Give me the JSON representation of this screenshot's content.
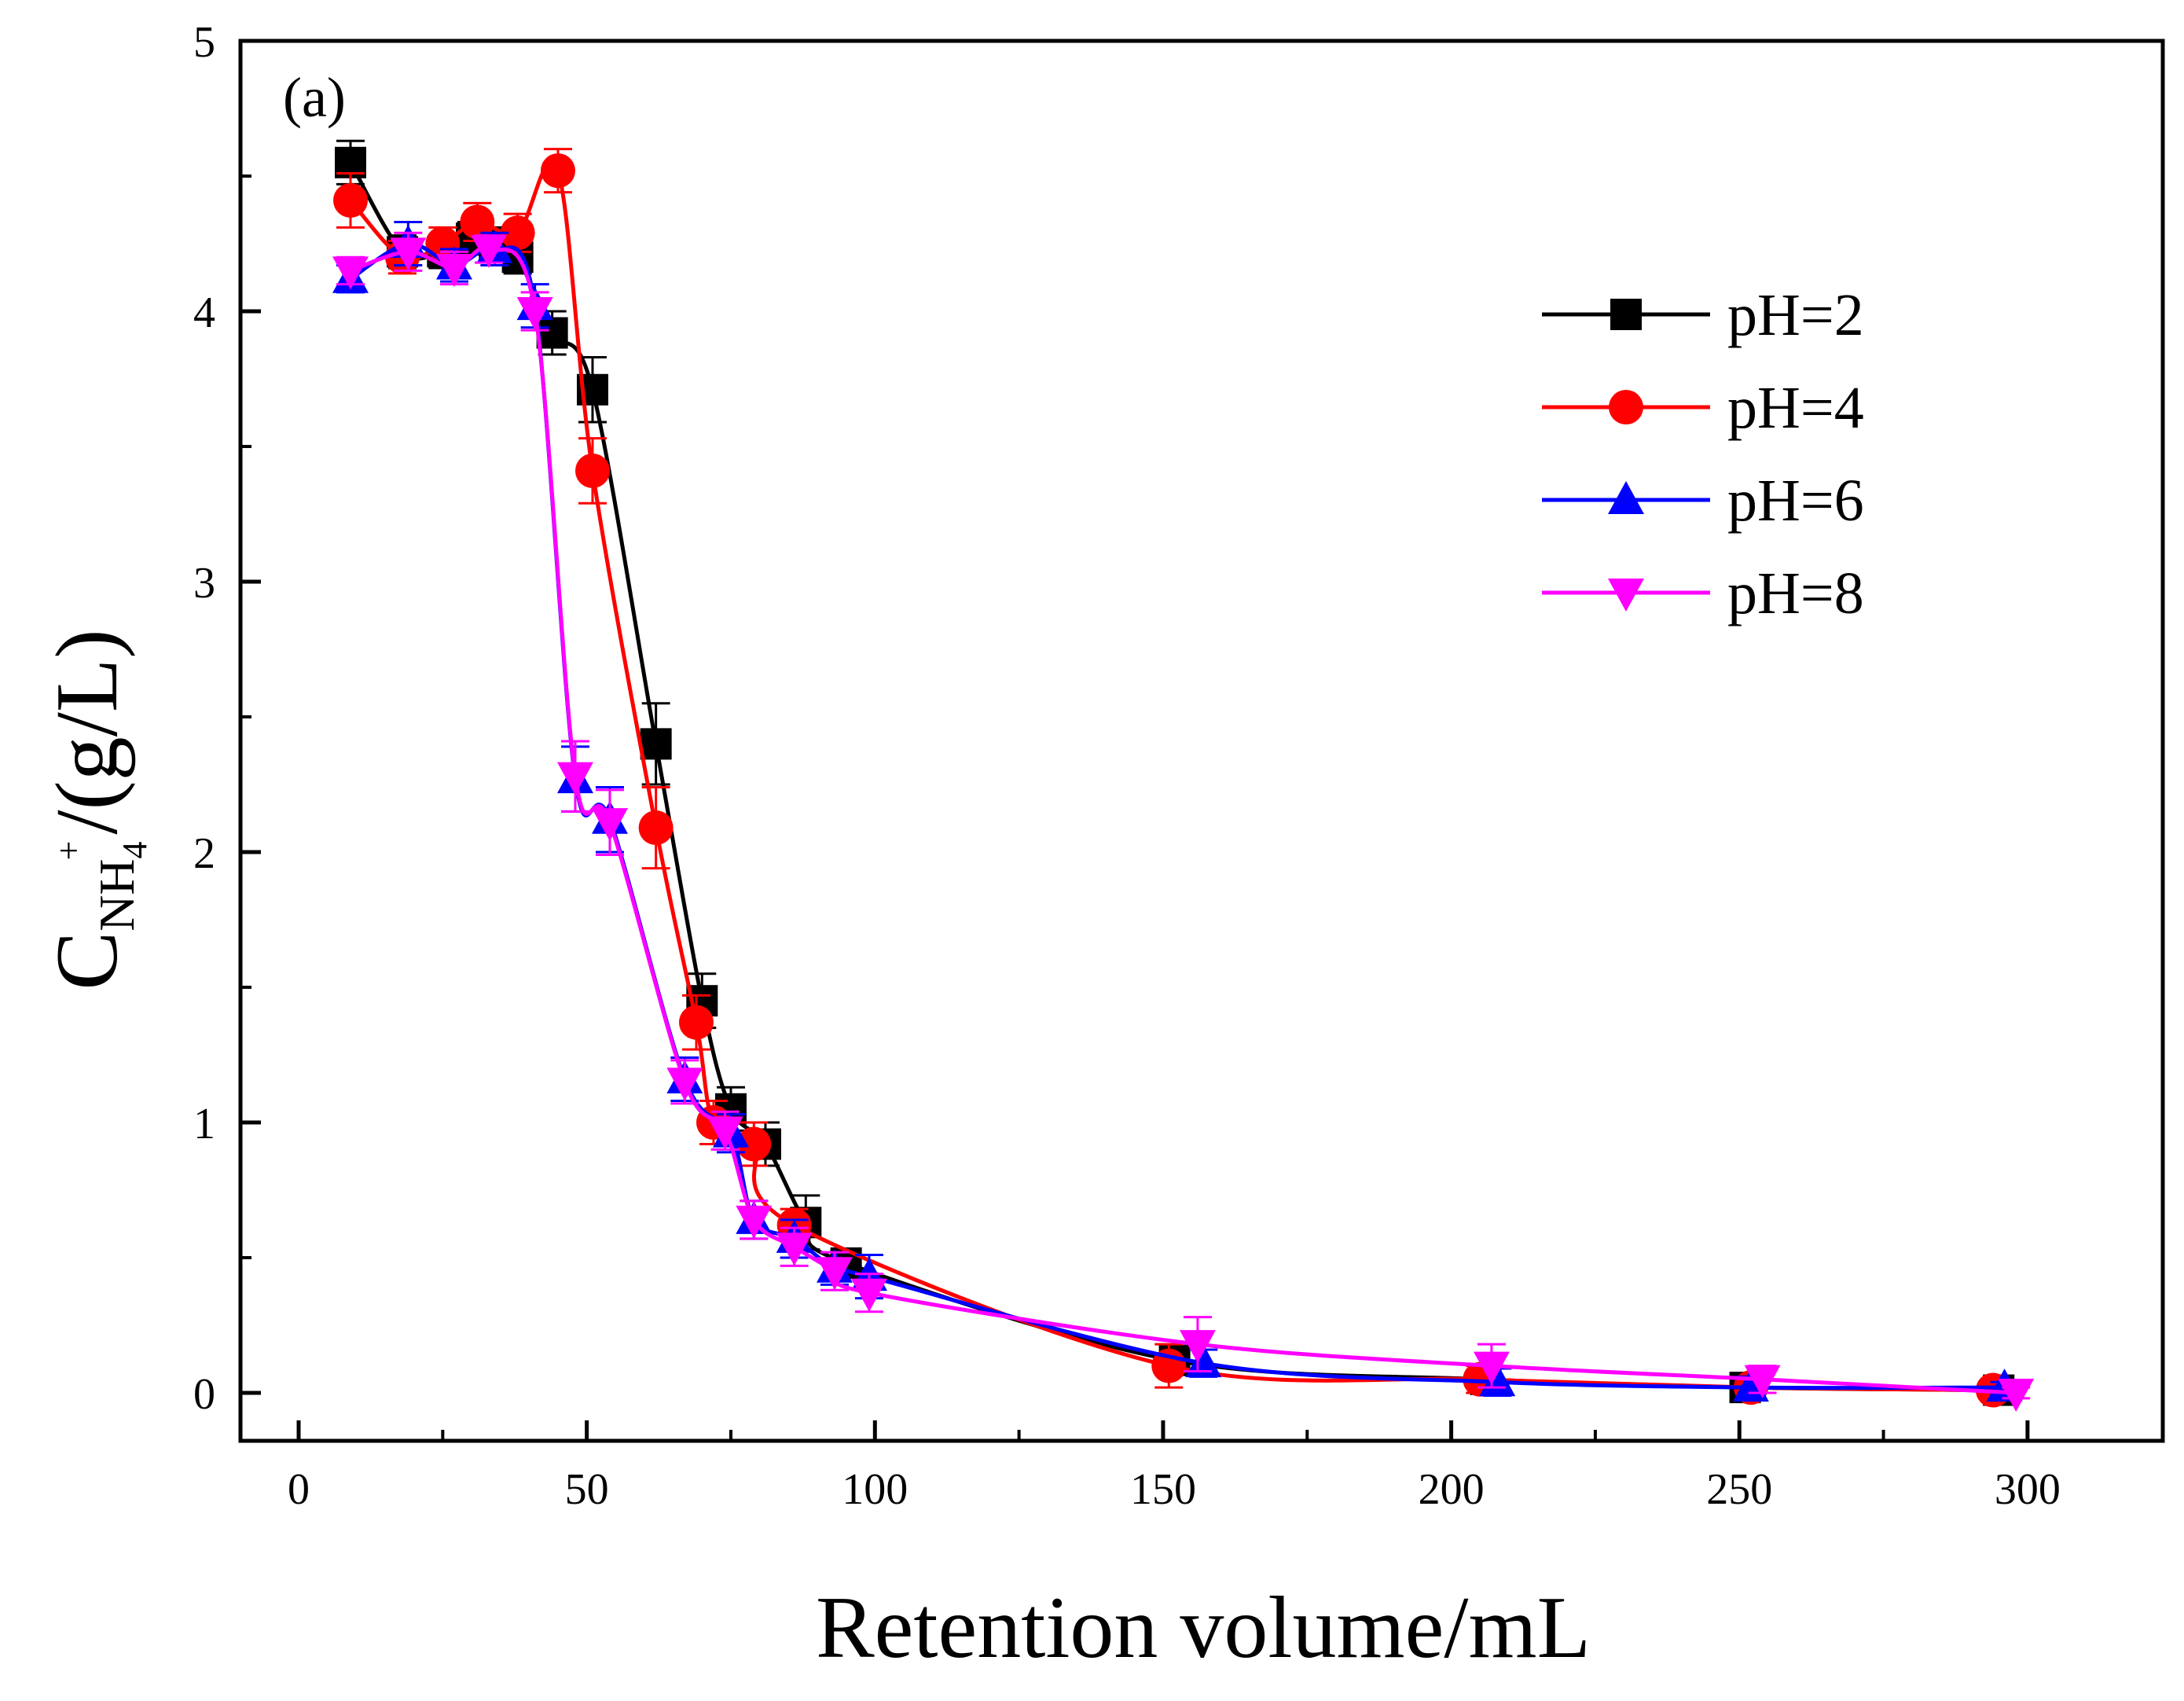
{
  "chart_data": {
    "type": "line",
    "panel_label": "(a)",
    "xlabel": "Retention volume/mL",
    "ylabel": {
      "symbol": "C",
      "subscript": "NH",
      "sub_sub": "4",
      "sup": "+",
      "unit": "/(g/L)"
    },
    "xlim": [
      -10,
      325
    ],
    "ylim": [
      -0.2,
      5
    ],
    "xticks": [
      0,
      50,
      100,
      150,
      200,
      250,
      300
    ],
    "yticks": [
      0,
      1,
      2,
      3,
      4,
      5
    ],
    "legend_position": "top-right",
    "series": [
      {
        "name": "pH=2",
        "color": "#000000",
        "marker": "square",
        "x": [
          9,
          18,
          25,
          30,
          34,
          38,
          44,
          51,
          62,
          70,
          75,
          81,
          88,
          95,
          152,
          206,
          251,
          295
        ],
        "y": [
          4.55,
          4.22,
          4.22,
          4.27,
          4.25,
          4.2,
          3.92,
          3.71,
          2.4,
          1.45,
          1.05,
          0.92,
          0.63,
          0.48,
          0.12,
          0.05,
          0.02,
          0.01
        ],
        "err": [
          0.08,
          0.06,
          0.06,
          0.06,
          0.06,
          0.06,
          0.08,
          0.12,
          0.15,
          0.1,
          0.08,
          0.08,
          0.1,
          0.05,
          0.05,
          0.04,
          0.03,
          0.02
        ]
      },
      {
        "name": "pH=4",
        "color": "#ff0000",
        "marker": "circle",
        "x": [
          9,
          18,
          25,
          31,
          38,
          45,
          51,
          62,
          69,
          72,
          79,
          86,
          151,
          205,
          252,
          294
        ],
        "y": [
          4.41,
          4.2,
          4.25,
          4.33,
          4.29,
          4.52,
          3.41,
          2.09,
          1.37,
          1.0,
          0.92,
          0.62,
          0.1,
          0.05,
          0.02,
          0.01
        ],
        "err": [
          0.1,
          0.06,
          0.06,
          0.07,
          0.07,
          0.08,
          0.12,
          0.15,
          0.1,
          0.08,
          0.08,
          0.06,
          0.08,
          0.05,
          0.04,
          0.02
        ]
      },
      {
        "name": "pH=6",
        "color": "#0000ff",
        "marker": "triangle-up",
        "x": [
          9,
          19,
          27,
          34,
          41,
          48,
          54,
          67,
          75,
          79,
          86,
          93,
          99,
          157,
          208,
          252,
          296
        ],
        "y": [
          4.12,
          4.25,
          4.17,
          4.23,
          4.02,
          2.27,
          2.12,
          1.16,
          0.96,
          0.64,
          0.57,
          0.46,
          0.43,
          0.11,
          0.04,
          0.02,
          0.02
        ],
        "err": [
          0.05,
          0.08,
          0.06,
          0.06,
          0.08,
          0.12,
          0.12,
          0.08,
          0.07,
          0.07,
          0.07,
          0.06,
          0.08,
          0.05,
          0.05,
          0.04,
          0.02
        ]
      },
      {
        "name": "pH=8",
        "color": "#ff00ff",
        "marker": "triangle-down",
        "x": [
          9,
          19,
          27,
          33,
          41,
          48,
          54,
          67,
          74,
          79,
          86,
          93,
          99,
          156,
          207,
          254,
          298
        ],
        "y": [
          4.15,
          4.22,
          4.16,
          4.23,
          4.0,
          2.28,
          2.11,
          1.15,
          0.97,
          0.64,
          0.54,
          0.45,
          0.37,
          0.18,
          0.1,
          0.05,
          0.0
        ],
        "err": [
          0.05,
          0.07,
          0.06,
          0.05,
          0.07,
          0.13,
          0.12,
          0.08,
          0.07,
          0.07,
          0.07,
          0.07,
          0.07,
          0.1,
          0.08,
          0.05,
          0.02
        ]
      }
    ]
  }
}
